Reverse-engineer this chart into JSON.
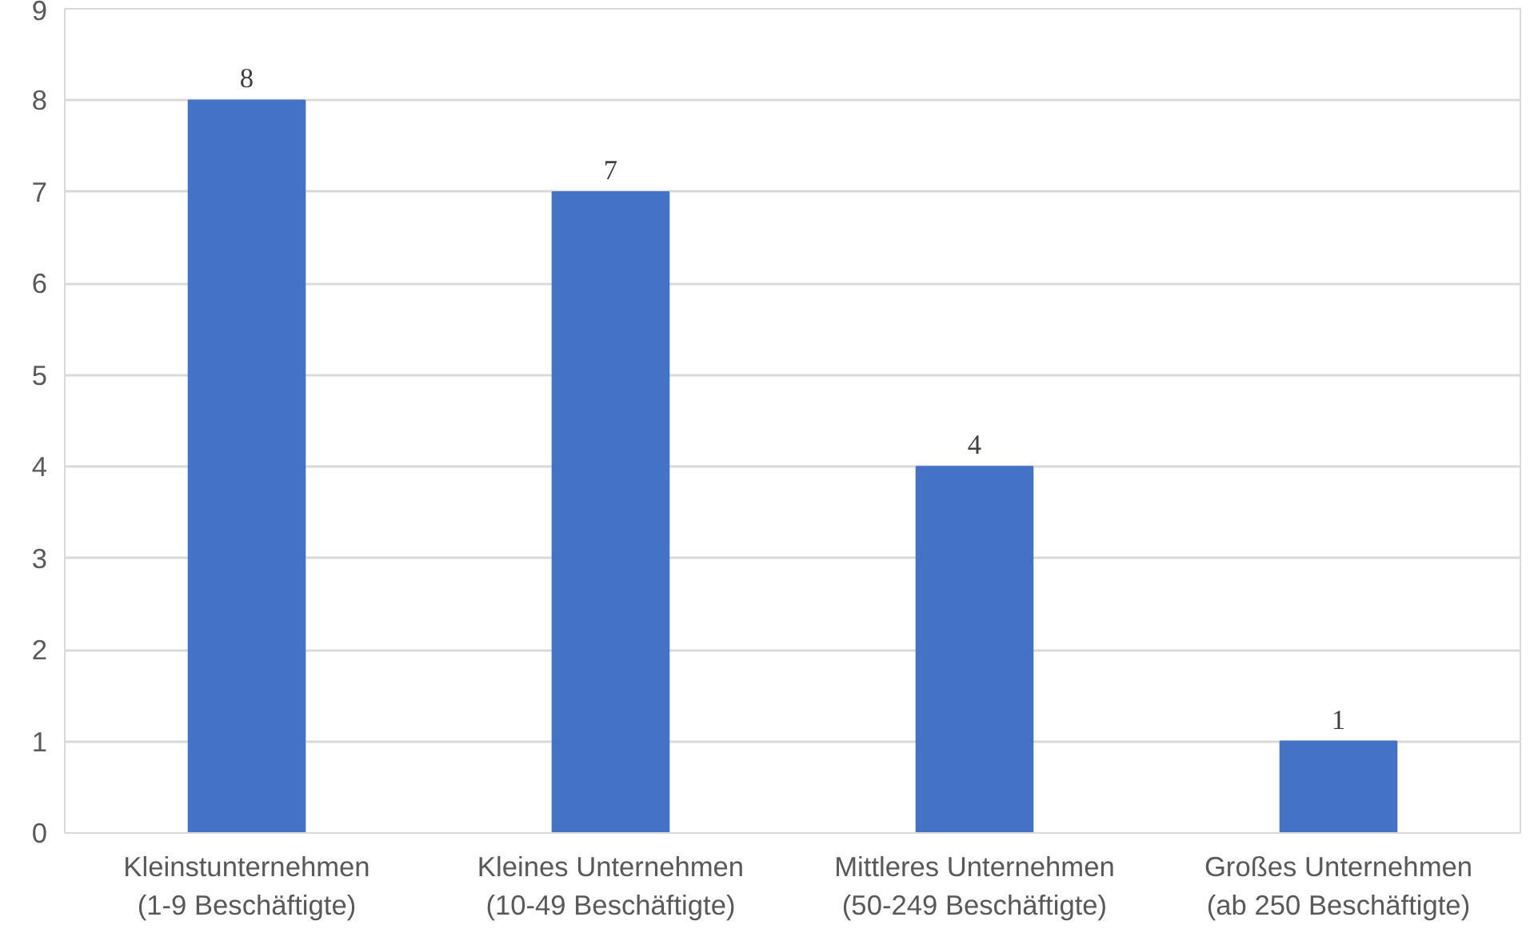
{
  "chart_data": {
    "type": "bar",
    "categories": [
      "Kleinstunternehmen (1-9 Beschäftigte)",
      "Kleines Unternehmen (10-49 Beschäftigte)",
      "Mittleres Unternehmen (50-249 Beschäftigte)",
      "Großes Unternehmen (ab 250 Beschäftigte)"
    ],
    "values": [
      8,
      7,
      4,
      1
    ],
    "color": "#4472c4",
    "ylim": [
      0,
      9
    ],
    "yticks": [
      0,
      1,
      2,
      3,
      4,
      5,
      6,
      7,
      8,
      9
    ],
    "grid": "y",
    "data_labels": true
  }
}
